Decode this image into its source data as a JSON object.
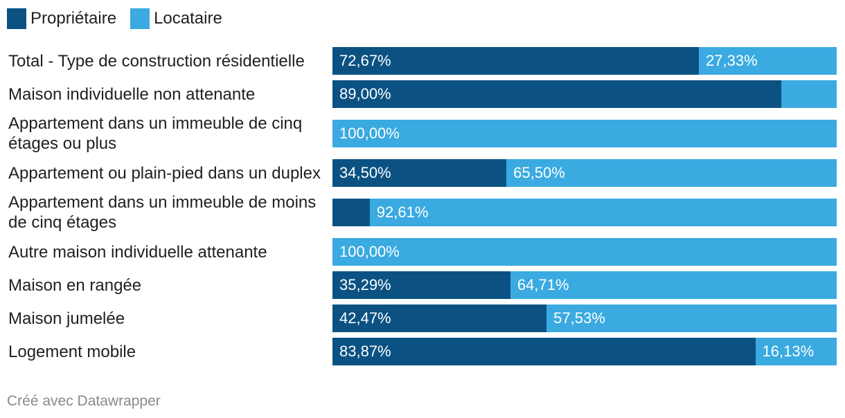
{
  "chart_data": {
    "type": "bar",
    "orientation": "horizontal",
    "stacked": "percent",
    "categories": [
      "Total - Type de construction résidentielle",
      "Maison individuelle non attenante",
      "Appartement dans un immeuble de cinq étages ou plus",
      "Appartement ou plain-pied dans un duplex",
      "Appartement dans un immeuble de moins de cinq étages",
      "Autre maison individuelle attenante",
      "Maison en rangée",
      "Maison jumelée",
      "Logement mobile"
    ],
    "series": [
      {
        "name": "Propriétaire",
        "color": "#0b5283",
        "values": [
          72.67,
          89.0,
          0,
          34.5,
          7.39,
          0,
          35.29,
          42.47,
          83.87
        ],
        "value_labels": [
          "72,67%",
          "89,00%",
          null,
          "34,50%",
          null,
          null,
          "35,29%",
          "42,47%",
          "83,87%"
        ]
      },
      {
        "name": "Locataire",
        "color": "#3aaae1",
        "values": [
          27.33,
          11.0,
          100.0,
          65.5,
          92.61,
          100.0,
          64.71,
          57.53,
          16.13
        ],
        "value_labels": [
          "27,33%",
          null,
          "100,00%",
          "65,50%",
          "92,61%",
          "100,00%",
          "64,71%",
          "57,53%",
          "16,13%"
        ]
      }
    ],
    "xlim": [
      0,
      100
    ],
    "legend": "top-left",
    "grid": false
  },
  "footer": {
    "credit": "Créé avec Datawrapper"
  }
}
